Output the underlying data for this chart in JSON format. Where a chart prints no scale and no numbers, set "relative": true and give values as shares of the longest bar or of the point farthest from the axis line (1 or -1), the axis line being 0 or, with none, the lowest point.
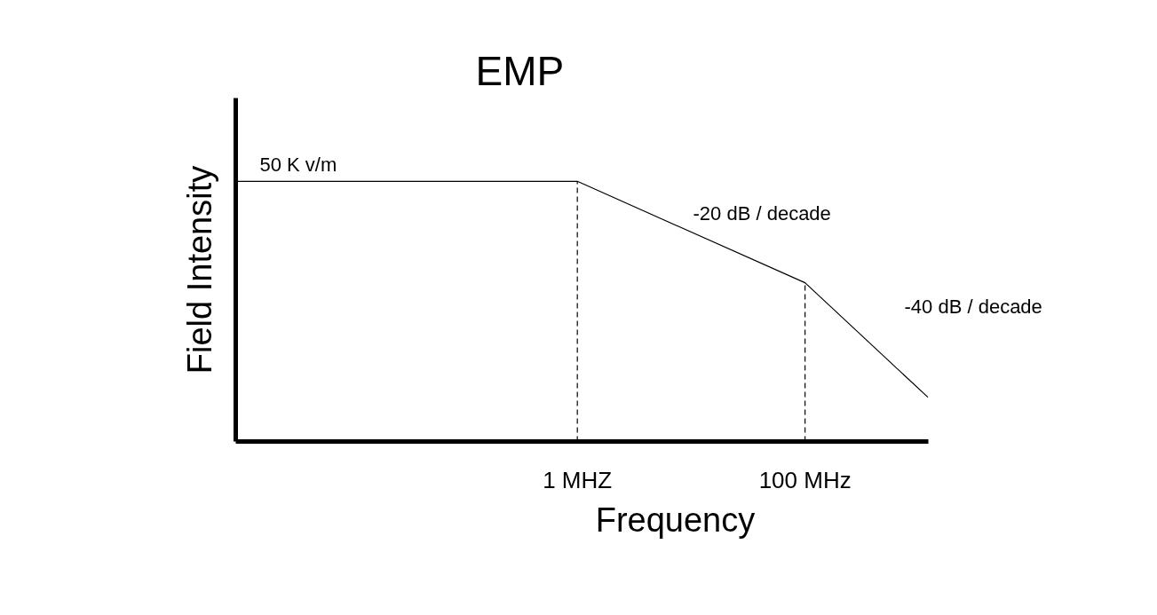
{
  "chart_data": {
    "type": "line",
    "title": "EMP",
    "xlabel": "Frequency",
    "ylabel": "Field Intensity",
    "log": "x",
    "relative": true,
    "xlim": [
      0.001,
      1200
    ],
    "xticks": [
      {
        "value": 1,
        "label": "1 MHZ"
      },
      {
        "value": 100,
        "label": "100 MHz"
      }
    ],
    "x": [
      0.001,
      1,
      100,
      1200
    ],
    "series": [
      {
        "color": "#000000",
        "values": [
          1,
          1,
          0.61,
          0.17
        ]
      }
    ],
    "ref_lines": [
      {
        "axis": "x",
        "value": 1,
        "line_style": "dashed"
      },
      {
        "axis": "x",
        "value": 100,
        "line_style": "dashed"
      }
    ],
    "annotations": [
      "50 K v/m",
      "-20 dB / decade",
      "-40 dB / decade"
    ]
  }
}
